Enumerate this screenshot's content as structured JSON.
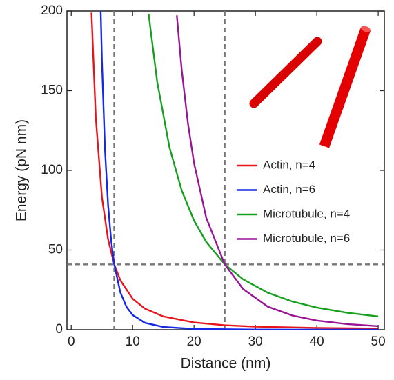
{
  "chart_data": {
    "type": "line",
    "x_label": "Distance (nm)",
    "y_label": "Energy (pN nm)",
    "xlim": [
      -0.7,
      51
    ],
    "ylim": [
      0,
      200
    ],
    "xticks": [
      0,
      10,
      20,
      30,
      40,
      50
    ],
    "yticks": [
      0,
      50,
      100,
      150,
      200
    ],
    "legend": "right",
    "reference_lines": {
      "x": [
        7,
        25
      ],
      "y": [
        41
      ],
      "color": "#777777"
    },
    "series": [
      {
        "name": "Actin, n=4",
        "color": "#e8141b",
        "x": [
          3.3,
          4,
          5,
          6,
          7,
          8,
          10,
          12,
          15,
          20,
          25,
          30,
          40,
          50
        ],
        "values": [
          199,
          133,
          83.1,
          56.7,
          41,
          31.0,
          19.4,
          13.2,
          8.3,
          4.5,
          2.8,
          1.9,
          1.1,
          0.7
        ]
      },
      {
        "name": "Actin, n=6",
        "color": "#1428e6",
        "x": [
          4.8,
          5,
          5.5,
          6,
          6.5,
          7,
          8,
          9,
          10,
          12,
          15,
          20,
          30,
          50
        ],
        "values": [
          200,
          168.5,
          112.9,
          78.3,
          56.0,
          41,
          23.4,
          14.3,
          9.2,
          4.3,
          1.7,
          0.5,
          0.1,
          0
        ]
      },
      {
        "name": "Microtubule, n=4",
        "color": "#14a01e",
        "x": [
          12.6,
          14,
          16,
          18,
          20,
          22,
          25,
          28,
          32,
          36,
          40,
          45,
          50
        ],
        "values": [
          198.3,
          155.6,
          114.4,
          87.3,
          68.5,
          55.0,
          41,
          31.6,
          23.2,
          17.7,
          13.9,
          10.6,
          8.3
        ]
      },
      {
        "name": "Microtubule, n=6",
        "color": "#9a1496",
        "x": [
          17.2,
          18,
          19,
          20,
          22,
          25,
          28,
          32,
          36,
          40,
          45,
          50
        ],
        "values": [
          197.3,
          162.9,
          129.8,
          104.6,
          70.1,
          41,
          25.5,
          14.5,
          8.9,
          5.7,
          3.5,
          2.2
        ]
      }
    ]
  }
}
